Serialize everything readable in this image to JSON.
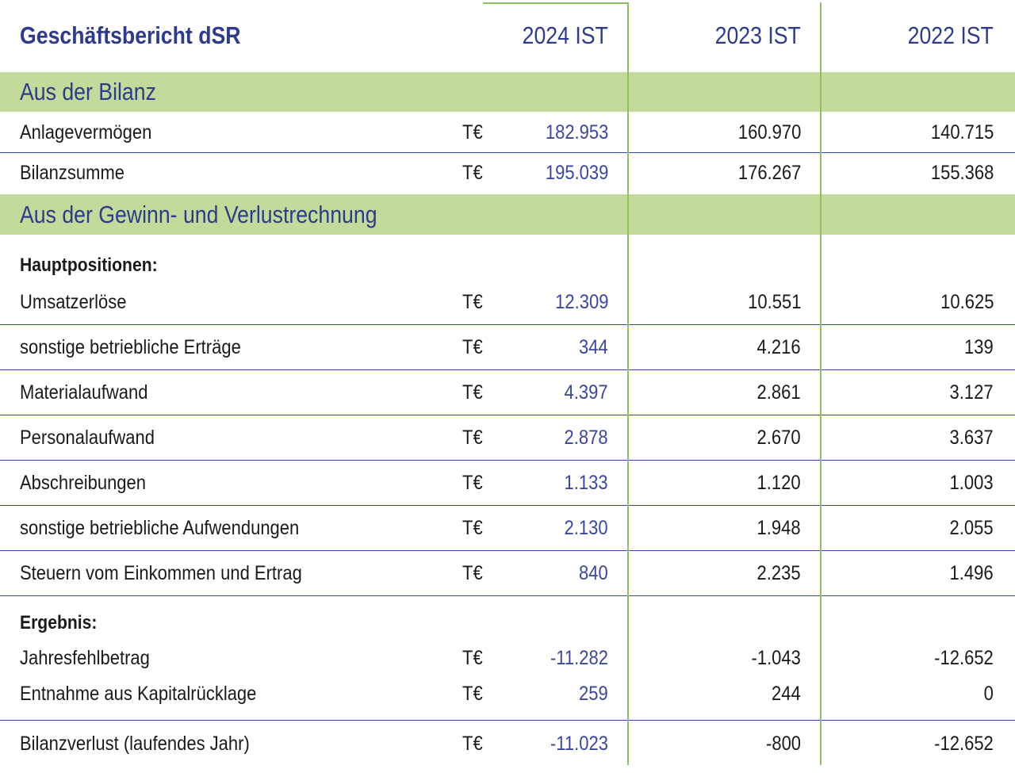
{
  "header": {
    "title": "Geschäftsbericht dSR",
    "columns": [
      "2024 IST",
      "2023 IST",
      "2022 IST"
    ]
  },
  "sections": {
    "bilanz": "Aus der Bilanz",
    "guv": "Aus der Gewinn- und Verlustrechnung"
  },
  "subheads": {
    "haupt": "Hauptpositionen:",
    "ergebnis": "Ergebnis:"
  },
  "unit": "T€",
  "rows": [
    {
      "label": "Anlagevermögen",
      "v2024": "182.953",
      "v2023": "160.970",
      "v2022": "140.715"
    },
    {
      "label": "Bilanzsumme",
      "v2024": "195.039",
      "v2023": "176.267",
      "v2022": "155.368"
    },
    {
      "label": "Umsatzerlöse",
      "v2024": "12.309",
      "v2023": "10.551",
      "v2022": "10.625"
    },
    {
      "label": "sonstige betriebliche Erträge",
      "v2024": "344",
      "v2023": "4.216",
      "v2022": "139"
    },
    {
      "label": "Materialaufwand",
      "v2024": "4.397",
      "v2023": "2.861",
      "v2022": "3.127"
    },
    {
      "label": "Personalaufwand",
      "v2024": "2.878",
      "v2023": "2.670",
      "v2022": "3.637"
    },
    {
      "label": "Abschreibungen",
      "v2024": "1.133",
      "v2023": "1.120",
      "v2022": "1.003"
    },
    {
      "label": "sonstige betriebliche Aufwendungen",
      "v2024": "2.130",
      "v2023": "1.948",
      "v2022": "2.055"
    },
    {
      "label": "Steuern vom Einkommen und Ertrag",
      "v2024": "840",
      "v2023": "2.235",
      "v2022": "1.496"
    },
    {
      "label": "Jahresfehlbetrag",
      "v2024": "-11.282",
      "v2023": "-1.043",
      "v2022": "-12.652"
    },
    {
      "label": "Entnahme aus Kapitalrücklage",
      "v2024": "259",
      "v2023": "244",
      "v2022": "0"
    },
    {
      "label": "Bilanzverlust (laufendes Jahr)",
      "v2024": "-11.023",
      "v2023": "-800",
      "v2022": "-12.652"
    }
  ],
  "colors": {
    "accent_blue": "#2e3a8c",
    "section_green": "#c2da9a",
    "column_line_green": "#8cc060"
  }
}
